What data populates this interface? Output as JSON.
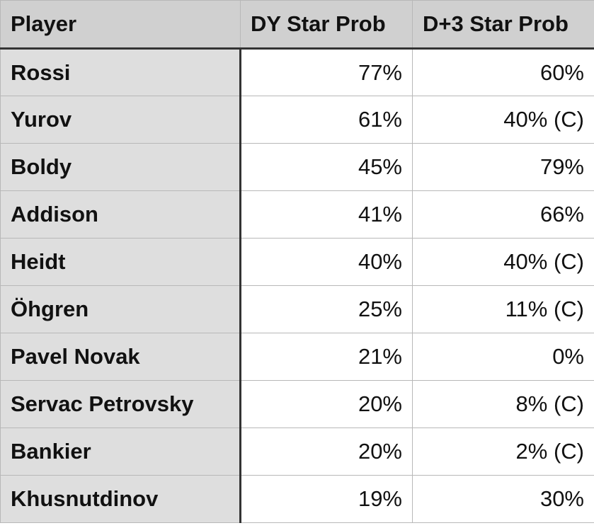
{
  "table": {
    "headers": [
      "Player",
      "DY Star Prob",
      "D+3 Star Prob"
    ],
    "rows": [
      {
        "player": "Rossi",
        "dy": "77%",
        "d3": "60%"
      },
      {
        "player": "Yurov",
        "dy": "61%",
        "d3": "40% (C)"
      },
      {
        "player": "Boldy",
        "dy": "45%",
        "d3": "79%"
      },
      {
        "player": "Addison",
        "dy": "41%",
        "d3": "66%"
      },
      {
        "player": "Heidt",
        "dy": "40%",
        "d3": "40% (C)"
      },
      {
        "player": "Öhgren",
        "dy": "25%",
        "d3": "11% (C)"
      },
      {
        "player": "Pavel Novak",
        "dy": "21%",
        "d3": "0%"
      },
      {
        "player": "Servac Petrovsky",
        "dy": "20%",
        "d3": "8% (C)"
      },
      {
        "player": "Bankier",
        "dy": "20%",
        "d3": "2% (C)"
      },
      {
        "player": "Khusnutdinov",
        "dy": "19%",
        "d3": "30%"
      }
    ]
  }
}
